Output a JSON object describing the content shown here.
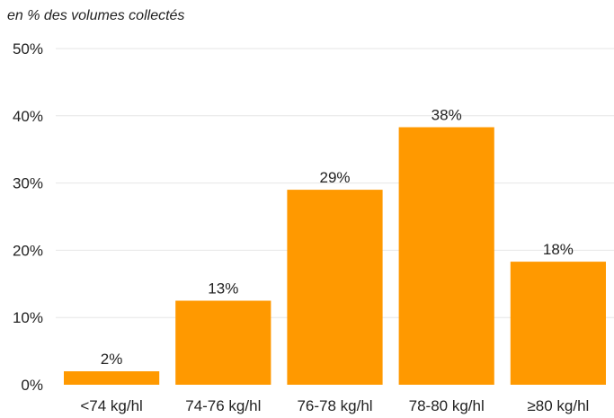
{
  "chart_data": {
    "type": "bar",
    "subtitle": "en % des volumes collectés",
    "categories": [
      "<74 kg/hl",
      "74-76 kg/hl",
      "76-78 kg/hl",
      "78-80 kg/hl",
      "≥80 kg/hl"
    ],
    "values": [
      2,
      12.5,
      29,
      38.3,
      18.3
    ],
    "data_labels": [
      "2%",
      "13%",
      "29%",
      "38%",
      "18%"
    ],
    "ylim": [
      0,
      50
    ],
    "yticks": [
      0,
      10,
      20,
      30,
      40,
      50
    ],
    "ytick_labels": [
      "0%",
      "10%",
      "20%",
      "30%",
      "40%",
      "50%"
    ],
    "grid": true,
    "bar_color": "#FF9900",
    "grid_color": "#e6e6e6"
  }
}
